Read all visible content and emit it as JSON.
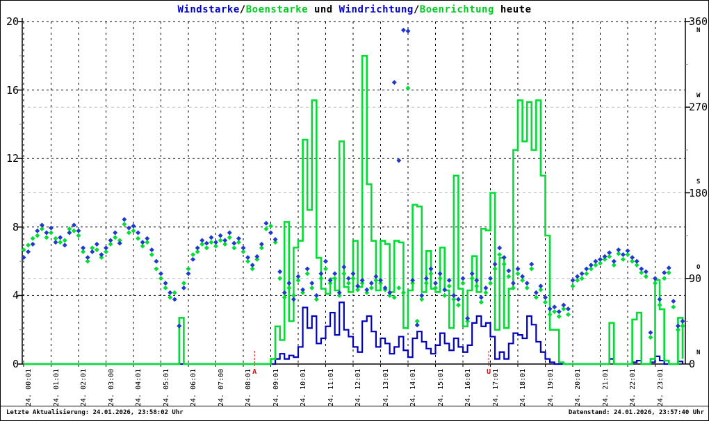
{
  "title": {
    "segments": [
      {
        "text": "Windstarke",
        "color": "#0000cc"
      },
      {
        "text": "/",
        "color": "#000000"
      },
      {
        "text": "Boenstarke",
        "color": "#00cc22"
      },
      {
        "text": " und ",
        "color": "#000000"
      },
      {
        "text": "Windrichtung",
        "color": "#0000cc"
      },
      {
        "text": "/",
        "color": "#000000"
      },
      {
        "text": "Boenrichtung",
        "color": "#00cc22"
      },
      {
        "text": " heute",
        "color": "#000000"
      }
    ]
  },
  "status_bar": {
    "left": "Letzte Aktualisierung: 24.01.2026, 23:58:02 Uhr",
    "right": "Datenstand: 24.01.2026, 23:57:40 Uhr"
  },
  "colors": {
    "wind_line": "#0000bb",
    "gust_line": "#00dd33",
    "wind_dots": "#2038cc",
    "gust_dots": "#00dd33",
    "marker_red": "#ee0000",
    "grid_black": "#000000",
    "grid_gray": "#b9b9b9",
    "background": "#ffffff"
  },
  "axes": {
    "left": {
      "ticks": [
        0,
        4,
        8,
        12,
        16,
        20
      ],
      "minor_ticks": [
        2,
        6,
        10,
        14,
        18
      ],
      "range": [
        0,
        20
      ]
    },
    "right": {
      "ticks": [
        {
          "value": 0,
          "letter": "N"
        },
        {
          "value": 90,
          "letter": "O"
        },
        {
          "value": 180,
          "letter": "S"
        },
        {
          "value": 270,
          "letter": "W"
        },
        {
          "value": 360,
          "letter": "N"
        }
      ],
      "minor_ticks": [
        45,
        135,
        225,
        315
      ],
      "range": [
        0,
        360
      ]
    },
    "x": {
      "labels": [
        "24. 00:01",
        "24. 01:01",
        "24. 02:01",
        "24. 03:00",
        "24. 04:01",
        "24. 05:01",
        "24. 06:01",
        "24. 07:00",
        "24. 08:01",
        "24. 09:01",
        "24. 10:01",
        "24. 11:01",
        "24. 12:01",
        "24. 13:01",
        "24. 14:01",
        "24. 15:01",
        "24. 16:01",
        "24. 17:01",
        "24. 18:01",
        "24. 19:01",
        "24. 20:01",
        "24. 21:01",
        "24. 22:01",
        "24. 23:01"
      ]
    }
  },
  "markers": [
    {
      "label": "A",
      "hour": 8.41,
      "color": "#ee0000"
    },
    {
      "label": "U",
      "hour": 16.94,
      "color": "#ee0000"
    }
  ],
  "chart_data": {
    "type": "line+scatter",
    "title": "Windstarke/Boenstarke und Windrichtung/Boenrichtung heute",
    "x_range_hours": [
      0,
      24
    ],
    "sample_interval_min": 10,
    "ylim_left": [
      0,
      20
    ],
    "ylim_right": [
      0,
      360
    ],
    "grid": true,
    "legend": "none",
    "series": [
      {
        "name": "Windstarke",
        "type": "line",
        "axis": "left",
        "color": "#0000bb",
        "values": [
          0,
          0,
          0,
          0,
          0,
          0,
          0,
          0,
          0,
          0,
          0,
          0,
          0,
          0,
          0,
          0,
          0,
          0,
          0,
          0,
          0,
          0,
          0,
          0,
          0,
          0,
          0,
          0,
          0,
          0,
          0,
          0,
          0,
          0,
          0,
          0,
          0,
          0,
          0,
          0,
          0,
          0,
          0,
          0,
          0,
          0,
          0,
          0,
          0,
          0,
          0,
          0,
          0,
          0,
          0,
          0.3,
          0.6,
          0.3,
          0.5,
          0.4,
          1.0,
          3.3,
          2.1,
          2.8,
          1.2,
          1.5,
          2.2,
          3.0,
          1.7,
          3.6,
          2.0,
          1.6,
          1.0,
          0.7,
          2.5,
          2.8,
          1.9,
          1.0,
          1.5,
          1.2,
          0.6,
          1.0,
          1.6,
          0.8,
          0.4,
          1.5,
          1.9,
          1.3,
          0.9,
          0.6,
          1.1,
          1.8,
          1.2,
          0.8,
          1.5,
          1.0,
          0.7,
          1.1,
          2.4,
          2.8,
          2.2,
          2.4,
          1.6,
          0.3,
          0.7,
          0.3,
          1.2,
          1.8,
          1.7,
          1.5,
          2.8,
          2.3,
          1.3,
          0.7,
          0.3,
          0.1,
          0,
          0,
          0,
          0,
          0,
          0,
          0,
          0,
          0,
          0,
          0,
          0,
          0.3,
          0,
          0,
          0,
          0,
          0.1,
          0.2,
          0,
          0,
          0.1,
          0.45,
          0.2,
          0,
          0,
          0,
          0.15,
          0
        ]
      },
      {
        "name": "Boenstarke",
        "type": "line",
        "axis": "left",
        "color": "#00dd33",
        "values": [
          0,
          0,
          0,
          0,
          0,
          0,
          0,
          0,
          0,
          0,
          0,
          0,
          0,
          0,
          0,
          0,
          0,
          0,
          0,
          0,
          0,
          0,
          0,
          0,
          0,
          0,
          0,
          0,
          0,
          0,
          0,
          0,
          0,
          0,
          2.7,
          0,
          0,
          0,
          0,
          0,
          0,
          0,
          0,
          0,
          0,
          0,
          0,
          0,
          0,
          0,
          0,
          0,
          0,
          0,
          0.3,
          2.2,
          1.4,
          8.3,
          2.5,
          6.8,
          7.2,
          13.1,
          9.0,
          15.4,
          6.2,
          4.4,
          4.1,
          5.0,
          4.3,
          13.0,
          4.5,
          4.2,
          7.2,
          4.5,
          18.0,
          10.5,
          7.2,
          4.3,
          7.2,
          7.0,
          4.2,
          7.2,
          7.1,
          2.1,
          4.3,
          9.3,
          9.2,
          4.2,
          6.6,
          4.4,
          4.2,
          6.8,
          4.3,
          2.1,
          11.0,
          4.4,
          2.2,
          4.3,
          6.3,
          4.2,
          7.9,
          7.8,
          10.0,
          2.0,
          6.2,
          2.1,
          4.4,
          12.5,
          15.4,
          13.0,
          15.3,
          12.5,
          15.4,
          11.0,
          7.5,
          2.0,
          2.0,
          0.1,
          0,
          0,
          0,
          0,
          0,
          0,
          0,
          0,
          0,
          0,
          2.4,
          0,
          0,
          0,
          0,
          2.6,
          3.0,
          0,
          0,
          0.3,
          4.9,
          3.2,
          0.2,
          0,
          0,
          2.7,
          0.3
        ]
      },
      {
        "name": "Boenrichtung",
        "type": "scatter",
        "axis": "right",
        "color": "#00dd33",
        "values": [
          120,
          125,
          132,
          135,
          142,
          133,
          138,
          132,
          128,
          130,
          142,
          140,
          135,
          118,
          108,
          122,
          120,
          112,
          118,
          126,
          133,
          130,
          147,
          138,
          140,
          132,
          124,
          128,
          115,
          100,
          90,
          80,
          70,
          75,
          40,
          85,
          100,
          115,
          118,
          126,
          122,
          128,
          124,
          130,
          126,
          133,
          122,
          128,
          118,
          108,
          100,
          110,
          122,
          142,
          145,
          128,
          90,
          70,
          80,
          72,
          88,
          75,
          95,
          80,
          68,
          90,
          100,
          85,
          90,
          72,
          95,
          85,
          90,
          78,
          85,
          75,
          80,
          88,
          85,
          78,
          72,
          70,
          80,
          75,
          290,
          85,
          45,
          68,
          85,
          95,
          80,
          90,
          72,
          82,
          68,
          62,
          85,
          45,
          90,
          82,
          65,
          75,
          85,
          100,
          115,
          105,
          92,
          80,
          95,
          88,
          80,
          100,
          70,
          78,
          65,
          52,
          55,
          50,
          58,
          52,
          82,
          88,
          90,
          95,
          100,
          104,
          106,
          110,
          113,
          104,
          116,
          110,
          115,
          108,
          104,
          96,
          92,
          28,
          85,
          62,
          90,
          96,
          60,
          36,
          40
        ]
      },
      {
        "name": "Windrichtung",
        "type": "scatter",
        "axis": "right",
        "color": "#2038cc",
        "values": [
          112,
          118,
          126,
          140,
          146,
          138,
          143,
          128,
          133,
          125,
          138,
          146,
          140,
          122,
          112,
          118,
          126,
          115,
          122,
          130,
          138,
          127,
          152,
          143,
          145,
          138,
          128,
          132,
          120,
          108,
          95,
          85,
          75,
          68,
          40,
          80,
          95,
          110,
          122,
          130,
          127,
          133,
          128,
          135,
          130,
          138,
          127,
          132,
          122,
          112,
          104,
          113,
          126,
          148,
          138,
          131,
          97,
          75,
          85,
          68,
          92,
          78,
          100,
          85,
          72,
          95,
          108,
          88,
          95,
          75,
          102,
          90,
          95,
          82,
          88,
          78,
          85,
          92,
          88,
          80,
          75,
          296,
          214,
          351,
          350,
          88,
          41,
          72,
          90,
          100,
          85,
          95,
          78,
          88,
          72,
          68,
          90,
          48,
          95,
          88,
          70,
          80,
          90,
          105,
          122,
          112,
          98,
          85,
          100,
          92,
          85,
          105,
          75,
          82,
          70,
          58,
          60,
          55,
          62,
          58,
          88,
          92,
          95,
          100,
          104,
          108,
          110,
          113,
          117,
          108,
          120,
          115,
          119,
          112,
          108,
          100,
          97,
          33,
          90,
          68,
          96,
          101,
          66,
          40,
          45
        ]
      }
    ]
  }
}
